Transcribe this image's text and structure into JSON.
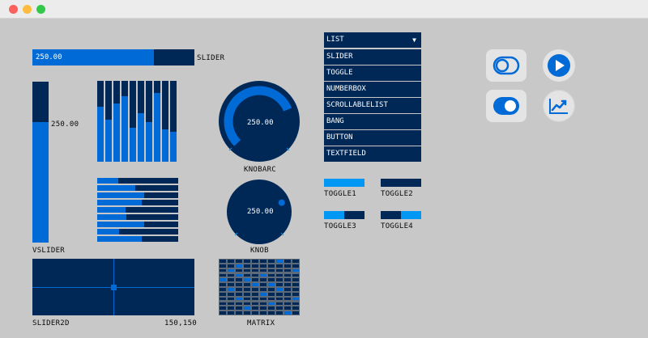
{
  "window": {
    "controls": [
      "close",
      "minimize",
      "zoom"
    ]
  },
  "colors": {
    "background": "#c8c8c8",
    "foreground": "#006ad6",
    "dark": "#002857",
    "active": "#0097f5"
  },
  "slider": {
    "label": "SLIDER",
    "value_text": "250.00",
    "value": 250,
    "min": 0,
    "max": 333
  },
  "vslider": {
    "label": "VSLIDER",
    "value_text": "250.00",
    "value": 250,
    "min": 0,
    "max": 333
  },
  "bar_graph": {
    "values": [
      0.68,
      0.52,
      0.72,
      0.81,
      0.42,
      0.6,
      0.49,
      0.85,
      0.4,
      0.37
    ]
  },
  "hbar_graph": {
    "values": [
      0.26,
      0.47,
      0.58,
      0.55,
      0.35,
      0.36,
      0.58,
      0.27,
      0.55
    ]
  },
  "knobarc": {
    "label": "KNOBARC",
    "value_text": "250.00",
    "value": 250,
    "min": 0,
    "max": 333
  },
  "knob": {
    "label": "KNOB",
    "value_text": "250.00",
    "value": 250,
    "min": 0,
    "max": 333
  },
  "slider2d": {
    "label": "SLIDER2D",
    "value_text": "150,150",
    "x": 150,
    "y": 150
  },
  "matrix": {
    "label": "MATRIX",
    "columns": 10,
    "rows": 12
  },
  "list": {
    "title": "LIST",
    "items": [
      "SLIDER",
      "TOGGLE",
      "NUMBERBOX",
      "SCROLLABLELIST",
      "BANG",
      "BUTTON",
      "TEXTFIELD"
    ]
  },
  "toggles": [
    {
      "label": "TOGGLE1",
      "state": "on"
    },
    {
      "label": "TOGGLE2",
      "state": "off"
    },
    {
      "label": "TOGGLE3",
      "state": "left"
    },
    {
      "label": "TOGGLE4",
      "state": "right"
    }
  ],
  "icons": [
    "toggle-off-icon",
    "play-icon",
    "toggle-on-icon",
    "trending-up-icon"
  ]
}
